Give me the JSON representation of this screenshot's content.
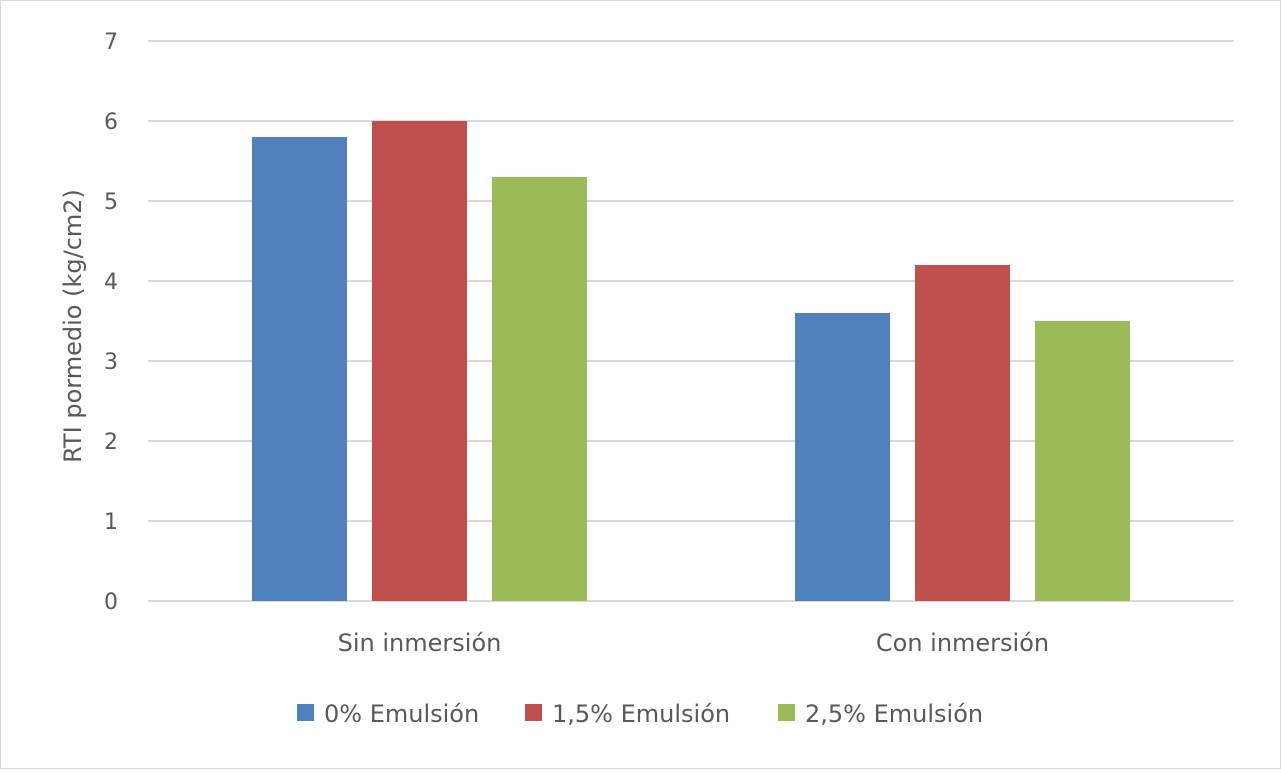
{
  "chart_data": {
    "type": "bar",
    "title": "",
    "xlabel": "",
    "ylabel": "RTI pormedio (kg/cm2)",
    "categories": [
      "Sin inmersión",
      "Con inmersión"
    ],
    "series": [
      {
        "name": "0% Emulsión",
        "values": [
          5.8,
          3.6
        ],
        "color": "#4f81bd"
      },
      {
        "name": "1,5% Emulsión",
        "values": [
          6.0,
          4.2
        ],
        "color": "#c0504d"
      },
      {
        "name": "2,5% Emulsión",
        "values": [
          5.3,
          3.5
        ],
        "color": "#9bbb59"
      }
    ],
    "ylim": [
      0,
      7
    ],
    "yticks": [
      "0",
      "1",
      "2",
      "3",
      "4",
      "5",
      "6",
      "7"
    ],
    "grid": true,
    "legend_position": "bottom"
  }
}
